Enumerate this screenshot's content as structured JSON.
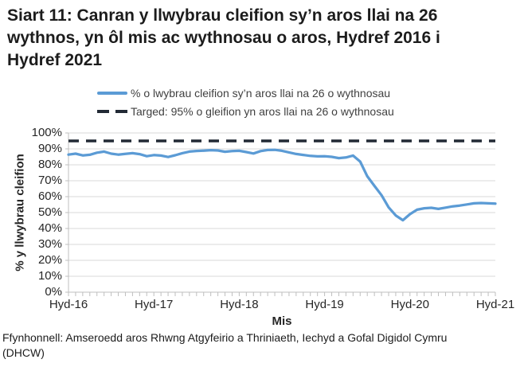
{
  "title_lines": [
    "Siart 11: Canran y llwybrau cleifion sy’n aros llai na 26",
    "wythnos, yn ôl mis ac wythnosau o aros, Hydref 2016 i",
    "Hydref 2021"
  ],
  "legend": {
    "series_label": "% o lwybrau cleifion sy’n aros llai na 26 o wythnosau",
    "target_label": "Targed: 95% o gleifion yn aros llai na 26 o wythnosau"
  },
  "colors": {
    "series": "#5B9BD5",
    "target": "#222A35",
    "gridline": "#D9D9D9",
    "axis": "#BFBFBF"
  },
  "footer_lines": [
    "Ffynhonnell: Amseroedd aros Rhwng Atgyfeirio a Thriniaeth, Iechyd a Gofal Digidol Cymru",
    "(DHCW)"
  ],
  "chart_data": {
    "type": "line",
    "title": "Siart 11: Canran y llwybrau cleifion sy’n aros llai na 26 wythnos, yn ôl mis ac wythnosau o aros, Hydref 2016 i Hydref 2021",
    "xlabel": "Mis",
    "ylabel": "% y llwybrau cleifion",
    "ylim": [
      0,
      100
    ],
    "y_tick_labels": [
      "0%",
      "10%",
      "20%",
      "30%",
      "40%",
      "50%",
      "60%",
      "70%",
      "80%",
      "90%",
      "100%"
    ],
    "x_tick_labels": [
      "Hyd-16",
      "Hyd-17",
      "Hyd-18",
      "Hyd-19",
      "Hyd-20",
      "Hyd-21"
    ],
    "x_tick_month_index": [
      0,
      12,
      24,
      36,
      48,
      60
    ],
    "x_range": [
      "Hydref 2016",
      "Hydref 2021"
    ],
    "x_interval": "misol (monthly, 61 points)",
    "grid": "horizontal gridlines on, legend top",
    "target_value": 95,
    "series": [
      {
        "name": "% o lwybrau cleifion sy’n aros llai na 26 o wythnosau",
        "values": [
          86.4,
          87.0,
          85.9,
          86.3,
          87.6,
          88.3,
          87.0,
          86.4,
          86.9,
          87.3,
          86.7,
          85.4,
          86.1,
          85.8,
          84.9,
          86.0,
          87.3,
          88.3,
          88.7,
          88.9,
          89.2,
          89.0,
          88.2,
          88.6,
          88.8,
          88.0,
          87.1,
          88.6,
          89.3,
          89.4,
          88.8,
          87.8,
          86.8,
          86.2,
          85.6,
          85.3,
          85.4,
          85.0,
          84.2,
          84.6,
          85.8,
          82.0,
          72.8,
          66.8,
          60.9,
          53.3,
          48.2,
          45.2,
          49.0,
          51.8,
          52.7,
          53.0,
          52.3,
          53.1,
          53.9,
          54.4,
          55.1,
          55.8,
          56.0,
          55.8,
          55.6
        ]
      },
      {
        "name": "Targed: 95% o gleifion yn aros llai na 26 o wythnosau",
        "type": "constant-dashed",
        "value": 95
      }
    ]
  }
}
